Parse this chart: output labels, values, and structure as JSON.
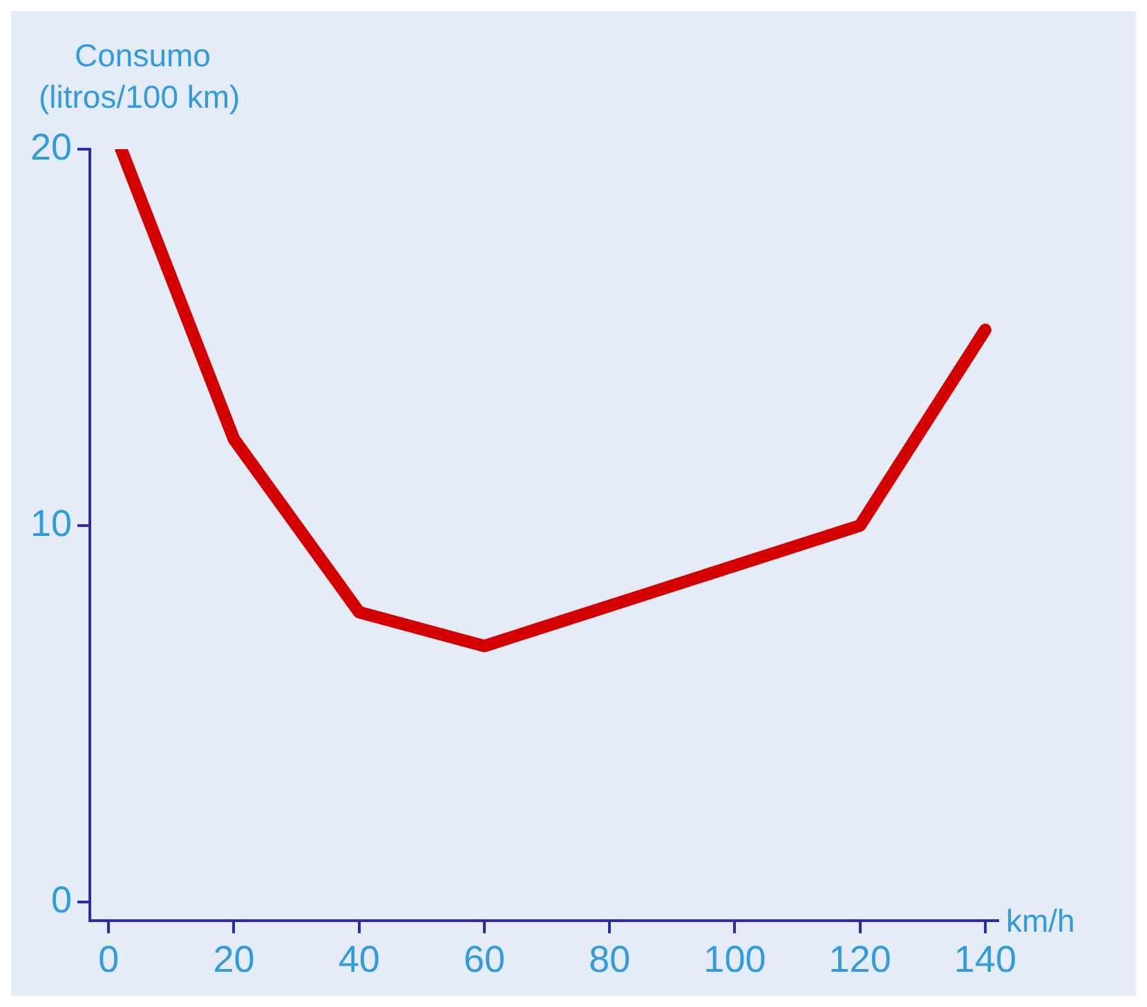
{
  "chart_data": {
    "type": "line",
    "xlabel": "km/h",
    "ylabel": "Consumo\n(litros/100 km)",
    "x": [
      2,
      20,
      40,
      60,
      120,
      140
    ],
    "series": [
      {
        "color": "#d40000",
        "values": [
          20,
          12.3,
          7.7,
          6.8,
          10,
          15.2
        ]
      }
    ],
    "xlim": [
      -3,
      142
    ],
    "ylim": [
      -0.5,
      20
    ],
    "xticks": [
      0,
      20,
      40,
      60,
      80,
      100,
      120,
      140
    ],
    "yticks": [
      0,
      10,
      20
    ],
    "grid": false,
    "legend": false,
    "marker": "none",
    "line_style": "solid"
  }
}
